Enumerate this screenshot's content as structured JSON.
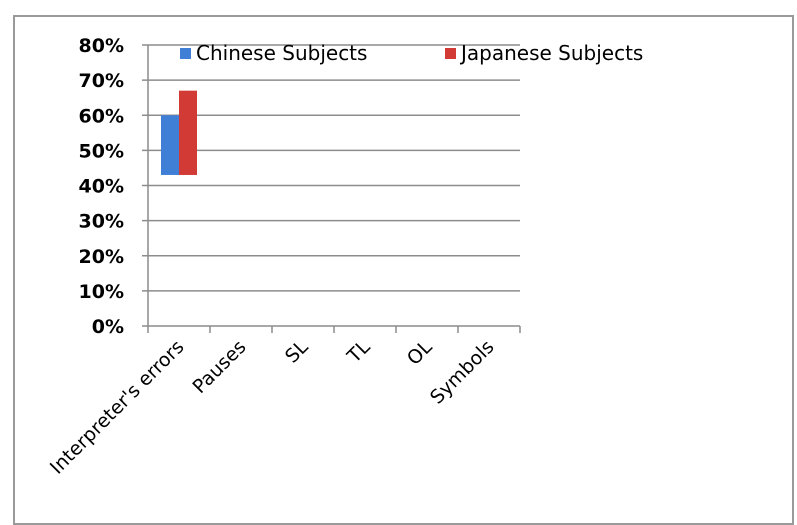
{
  "chart_data": {
    "type": "bar",
    "categories": [
      "Interpreter's errors",
      "Pauses",
      "SL",
      "TL",
      "OL",
      "Symbols"
    ],
    "series": [
      {
        "name": "Chinese Subjects",
        "base": [
          43,
          null,
          null,
          null,
          null,
          null
        ],
        "values": [
          60,
          null,
          null,
          null,
          null,
          null
        ],
        "color": "#3f7fd6"
      },
      {
        "name": "Japanese Subjects",
        "base": [
          43,
          null,
          null,
          null,
          null,
          null
        ],
        "values": [
          67,
          null,
          null,
          null,
          null,
          null
        ],
        "color": "#d23a35"
      }
    ],
    "yticks": [
      "0%",
      "10%",
      "20%",
      "30%",
      "40%",
      "50%",
      "60%",
      "70%",
      "80%"
    ],
    "ylim": [
      0,
      80
    ],
    "grid": true,
    "legend": "top"
  }
}
